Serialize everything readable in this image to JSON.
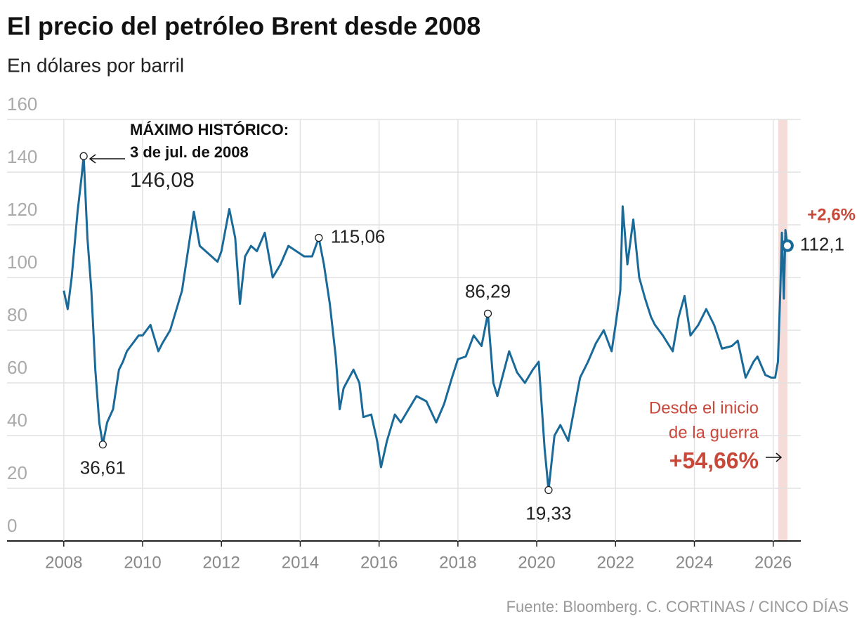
{
  "chart_data": {
    "type": "line",
    "title": "El precio del petróleo Brent desde 2008",
    "subtitle": "En dólares por barril",
    "source": "Fuente: Bloomberg. C. CORTINAS / CINCO DÍAS",
    "xlim": [
      2006.56,
      2026.7
    ],
    "xticks": [
      2008,
      2010,
      2012,
      2014,
      2016,
      2018,
      2020,
      2022,
      2024,
      2026
    ],
    "ylim": [
      0,
      160
    ],
    "yticks": [
      0,
      20,
      40,
      60,
      80,
      100,
      120,
      140,
      160
    ],
    "grid": true,
    "highlight_span": [
      2026.13,
      2026.36
    ],
    "highlight_color": "#f6dcd8",
    "series": [
      {
        "name": "Brent",
        "color": "#1a6a99",
        "x": [
          2008.0,
          2008.1,
          2008.2,
          2008.35,
          2008.45,
          2008.505,
          2008.6,
          2008.7,
          2008.8,
          2008.9,
          2008.99,
          2009.1,
          2009.25,
          2009.4,
          2009.5,
          2009.6,
          2009.75,
          2009.9,
          2010.0,
          2010.2,
          2010.4,
          2010.5,
          2010.7,
          2010.9,
          2011.0,
          2011.15,
          2011.3,
          2011.45,
          2011.6,
          2011.75,
          2011.9,
          2012.0,
          2012.2,
          2012.35,
          2012.47,
          2012.6,
          2012.75,
          2012.9,
          2013.1,
          2013.3,
          2013.5,
          2013.7,
          2013.9,
          2014.1,
          2014.3,
          2014.47,
          2014.6,
          2014.75,
          2014.9,
          2015.0,
          2015.1,
          2015.35,
          2015.5,
          2015.6,
          2015.8,
          2015.95,
          2016.05,
          2016.2,
          2016.4,
          2016.55,
          2016.75,
          2016.95,
          2017.2,
          2017.45,
          2017.65,
          2017.85,
          2018.0,
          2018.2,
          2018.4,
          2018.6,
          2018.76,
          2018.9,
          2019.0,
          2019.3,
          2019.5,
          2019.7,
          2019.9,
          2020.05,
          2020.2,
          2020.3,
          2020.45,
          2020.6,
          2020.8,
          2020.95,
          2021.1,
          2021.3,
          2021.5,
          2021.7,
          2021.9,
          2022.0,
          2022.12,
          2022.18,
          2022.3,
          2022.45,
          2022.6,
          2022.75,
          2022.9,
          2023.0,
          2023.2,
          2023.45,
          2023.6,
          2023.75,
          2023.9,
          2024.1,
          2024.3,
          2024.5,
          2024.7,
          2024.95,
          2025.1,
          2025.3,
          2025.5,
          2025.6,
          2025.8,
          2025.95,
          2026.05,
          2026.12,
          2026.18,
          2026.22,
          2026.27,
          2026.31,
          2026.36
        ],
        "values": [
          95,
          88,
          100,
          125,
          138,
          146.08,
          115,
          95,
          65,
          45,
          36.61,
          45,
          50,
          65,
          68,
          72,
          75,
          78,
          78,
          82,
          72,
          75,
          80,
          90,
          95,
          110,
          125,
          112,
          110,
          108,
          106,
          110,
          126,
          115,
          90,
          108,
          112,
          110,
          117,
          100,
          105,
          112,
          110,
          108,
          108,
          115.06,
          105,
          90,
          70,
          50,
          58,
          65,
          60,
          47,
          48,
          38,
          28,
          38,
          48,
          45,
          50,
          55,
          53,
          45,
          52,
          62,
          69,
          70,
          78,
          74,
          86.29,
          60,
          55,
          72,
          64,
          60,
          65,
          68,
          35,
          19.33,
          40,
          44,
          38,
          50,
          62,
          68,
          75,
          80,
          72,
          82,
          95,
          127,
          105,
          122,
          100,
          92,
          85,
          82,
          78,
          72,
          85,
          93,
          78,
          82,
          88,
          82,
          73,
          74,
          76,
          62,
          68,
          70,
          63,
          62,
          62,
          68,
          95,
          117,
          92,
          118,
          112.1
        ],
        "value_labels": [
          null,
          null,
          null,
          null,
          null,
          "146,08",
          null,
          null,
          null,
          null,
          "36,61",
          null,
          null,
          null,
          null,
          null,
          null,
          null,
          null,
          null,
          null,
          null,
          null,
          null,
          null,
          null,
          null,
          null,
          null,
          null,
          null,
          null,
          null,
          null,
          null,
          null,
          null,
          null,
          null,
          null,
          null,
          null,
          null,
          null,
          null,
          "115,06",
          null,
          null,
          null,
          null,
          null,
          null,
          null,
          null,
          null,
          null,
          null,
          null,
          null,
          null,
          null,
          null,
          null,
          null,
          null,
          null,
          null,
          null,
          null,
          null,
          "86,29",
          null,
          null,
          null,
          null,
          null,
          null,
          null,
          null,
          "19,33",
          null,
          null,
          null,
          null,
          null,
          null,
          null,
          null,
          null,
          null,
          null,
          null,
          null,
          null,
          null,
          null,
          null,
          null,
          null,
          null,
          null,
          null,
          null,
          null,
          null,
          null,
          null,
          null,
          null,
          null,
          null,
          null,
          null,
          null,
          null,
          null,
          null,
          null,
          null,
          null,
          "112,1"
        ]
      }
    ],
    "annotations": [
      "MÁXIMO HISTÓRICO:",
      "3 de jul. de 2008",
      "+2,6%",
      "Desde el inicio",
      "de la guerra",
      "+54,66%"
    ]
  }
}
